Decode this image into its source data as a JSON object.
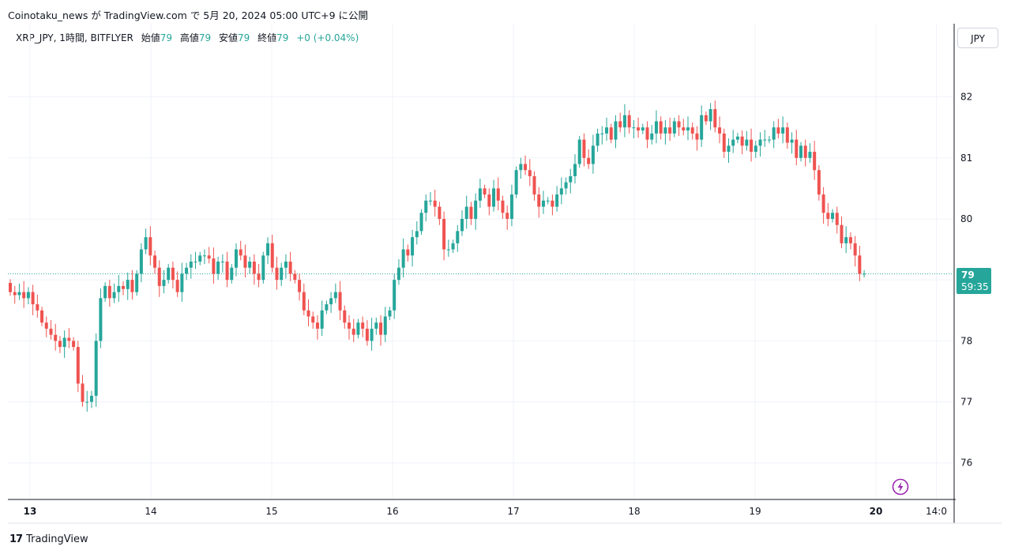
{
  "header": {
    "attribution": "Coinotaku_news が TradingView.com で 5月 20, 2024 05:00 UTC+9 に公開"
  },
  "legend": {
    "symbol": "XRP_JPY, 1時間, BITFLYER",
    "open_label": "始値",
    "open_value": "79",
    "high_label": "高値",
    "high_value": "79",
    "low_label": "安値",
    "low_value": "79",
    "close_label": "終値",
    "close_value": "79",
    "change": "+0 (+0.04%)"
  },
  "currency": "JPY",
  "price_tag": {
    "price": "79",
    "countdown": "59:35"
  },
  "footer": {
    "brand": "TradingView"
  },
  "colors": {
    "up": "#26a69a",
    "down": "#ef5350",
    "grid": "#f0f3fa",
    "axis": "#131722",
    "last_price_line": "#26a69a"
  },
  "chart_data": {
    "type": "candlestick",
    "ylim": [
      75.4,
      83.2
    ],
    "y_ticks": [
      "76",
      "77",
      "78",
      "79",
      "80",
      "81",
      "82"
    ],
    "y_tick_values": [
      76,
      77,
      78,
      79,
      80,
      81,
      82
    ],
    "x_ticks": [
      "13",
      "14",
      "15",
      "16",
      "17",
      "18",
      "19",
      "20",
      "14:0"
    ],
    "x_tick_days": [
      0,
      1,
      2,
      3,
      4,
      5,
      6,
      7,
      7.5
    ],
    "last_price": 79.1,
    "closes": [
      78.8,
      78.75,
      78.8,
      78.7,
      78.8,
      78.6,
      78.5,
      78.3,
      78.2,
      78.1,
      78.0,
      77.9,
      78.05,
      78.0,
      77.9,
      77.3,
      77.0,
      77.0,
      77.1,
      78.0,
      78.7,
      78.9,
      78.7,
      78.8,
      78.9,
      78.85,
      79.0,
      78.8,
      79.1,
      79.5,
      79.7,
      79.4,
      79.2,
      78.9,
      79.0,
      79.2,
      79.0,
      78.8,
      79.1,
      79.2,
      79.3,
      79.3,
      79.4,
      79.4,
      79.35,
      79.1,
      79.3,
      79.3,
      79.0,
      79.2,
      79.5,
      79.4,
      79.2,
      79.3,
      79.1,
      79.0,
      79.4,
      79.6,
      79.2,
      79.0,
      79.2,
      79.3,
      79.1,
      79.0,
      78.8,
      78.5,
      78.4,
      78.3,
      78.2,
      78.5,
      78.6,
      78.7,
      78.8,
      78.5,
      78.3,
      78.2,
      78.1,
      78.3,
      78.2,
      78.0,
      78.2,
      78.3,
      78.1,
      78.4,
      78.5,
      79.0,
      79.2,
      79.5,
      79.4,
      79.7,
      79.8,
      80.1,
      80.3,
      80.3,
      80.2,
      80.0,
      79.5,
      79.5,
      79.6,
      79.8,
      80.0,
      80.2,
      80.0,
      80.3,
      80.5,
      80.4,
      80.2,
      80.5,
      80.3,
      80.1,
      80.0,
      80.4,
      80.8,
      80.9,
      80.8,
      80.7,
      80.4,
      80.2,
      80.3,
      80.3,
      80.2,
      80.4,
      80.5,
      80.6,
      80.7,
      80.9,
      81.3,
      81.0,
      80.9,
      81.2,
      81.4,
      81.4,
      81.5,
      81.3,
      81.6,
      81.5,
      81.7,
      81.5,
      81.5,
      81.45,
      81.5,
      81.3,
      81.4,
      81.6,
      81.4,
      81.5,
      81.4,
      81.6,
      81.5,
      81.45,
      81.5,
      81.4,
      81.3,
      81.7,
      81.6,
      81.8,
      81.5,
      81.4,
      81.1,
      81.2,
      81.3,
      81.35,
      81.2,
      81.3,
      81.1,
      81.2,
      81.3,
      81.3,
      81.3,
      81.5,
      81.4,
      81.5,
      81.25,
      81.3,
      81.0,
      81.2,
      81.0,
      81.1,
      80.8,
      80.4,
      80.1,
      80.0,
      80.1,
      79.9,
      79.6,
      79.7,
      79.6,
      79.4,
      79.1,
      79.1
    ]
  }
}
